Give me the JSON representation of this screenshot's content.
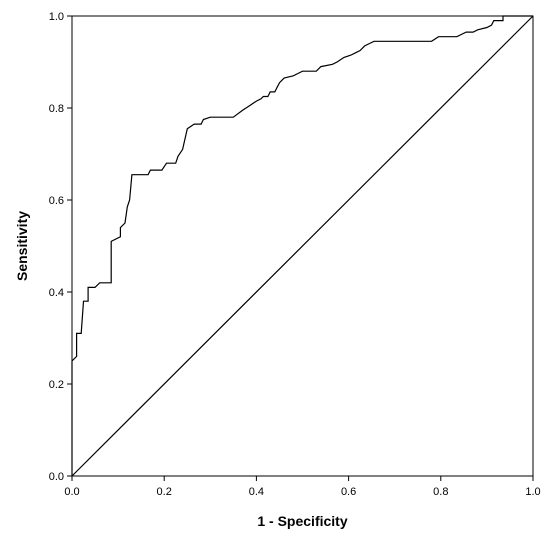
{
  "chart_data": {
    "type": "line",
    "title": "",
    "xlabel": "1 - Specificity",
    "ylabel": "Sensitivity",
    "xlim": [
      0.0,
      1.0
    ],
    "ylim": [
      0.0,
      1.0
    ],
    "x_ticks": [
      "0.0",
      "0.2",
      "0.4",
      "0.6",
      "0.8",
      "1.0"
    ],
    "y_ticks": [
      "0.0",
      "0.2",
      "0.4",
      "0.6",
      "0.8",
      "1.0"
    ],
    "grid": false,
    "legend": "none",
    "colors": {
      "curve": "#000000",
      "reference": "#000000",
      "frame": "#000000"
    },
    "series": [
      {
        "style": "step",
        "points": [
          [
            0.0,
            0.0
          ],
          [
            0.0,
            0.25
          ],
          [
            0.01,
            0.26
          ],
          [
            0.01,
            0.31
          ],
          [
            0.02,
            0.31
          ],
          [
            0.025,
            0.38
          ],
          [
            0.035,
            0.38
          ],
          [
            0.035,
            0.41
          ],
          [
            0.05,
            0.41
          ],
          [
            0.06,
            0.42
          ],
          [
            0.085,
            0.42
          ],
          [
            0.085,
            0.51
          ],
          [
            0.105,
            0.52
          ],
          [
            0.105,
            0.54
          ],
          [
            0.115,
            0.55
          ],
          [
            0.12,
            0.585
          ],
          [
            0.125,
            0.6
          ],
          [
            0.13,
            0.655
          ],
          [
            0.165,
            0.655
          ],
          [
            0.17,
            0.665
          ],
          [
            0.195,
            0.665
          ],
          [
            0.205,
            0.68
          ],
          [
            0.225,
            0.68
          ],
          [
            0.23,
            0.695
          ],
          [
            0.24,
            0.71
          ],
          [
            0.25,
            0.755
          ],
          [
            0.265,
            0.765
          ],
          [
            0.28,
            0.765
          ],
          [
            0.285,
            0.775
          ],
          [
            0.3,
            0.78
          ],
          [
            0.35,
            0.78
          ],
          [
            0.37,
            0.795
          ],
          [
            0.385,
            0.805
          ],
          [
            0.4,
            0.815
          ],
          [
            0.41,
            0.82
          ],
          [
            0.415,
            0.825
          ],
          [
            0.425,
            0.825
          ],
          [
            0.43,
            0.835
          ],
          [
            0.44,
            0.835
          ],
          [
            0.445,
            0.845
          ],
          [
            0.45,
            0.855
          ],
          [
            0.46,
            0.865
          ],
          [
            0.48,
            0.87
          ],
          [
            0.49,
            0.875
          ],
          [
            0.5,
            0.88
          ],
          [
            0.53,
            0.88
          ],
          [
            0.54,
            0.89
          ],
          [
            0.565,
            0.895
          ],
          [
            0.575,
            0.9
          ],
          [
            0.59,
            0.91
          ],
          [
            0.605,
            0.915
          ],
          [
            0.615,
            0.92
          ],
          [
            0.625,
            0.925
          ],
          [
            0.635,
            0.935
          ],
          [
            0.645,
            0.94
          ],
          [
            0.655,
            0.945
          ],
          [
            0.78,
            0.945
          ],
          [
            0.795,
            0.955
          ],
          [
            0.835,
            0.955
          ],
          [
            0.845,
            0.96
          ],
          [
            0.855,
            0.965
          ],
          [
            0.87,
            0.965
          ],
          [
            0.88,
            0.97
          ],
          [
            0.9,
            0.975
          ],
          [
            0.91,
            0.98
          ],
          [
            0.915,
            0.99
          ],
          [
            0.935,
            0.99
          ],
          [
            0.935,
            1.0
          ],
          [
            1.0,
            1.0
          ]
        ]
      },
      {
        "style": "reference",
        "points": [
          [
            0.0,
            0.0
          ],
          [
            1.0,
            1.0
          ]
        ]
      }
    ]
  }
}
